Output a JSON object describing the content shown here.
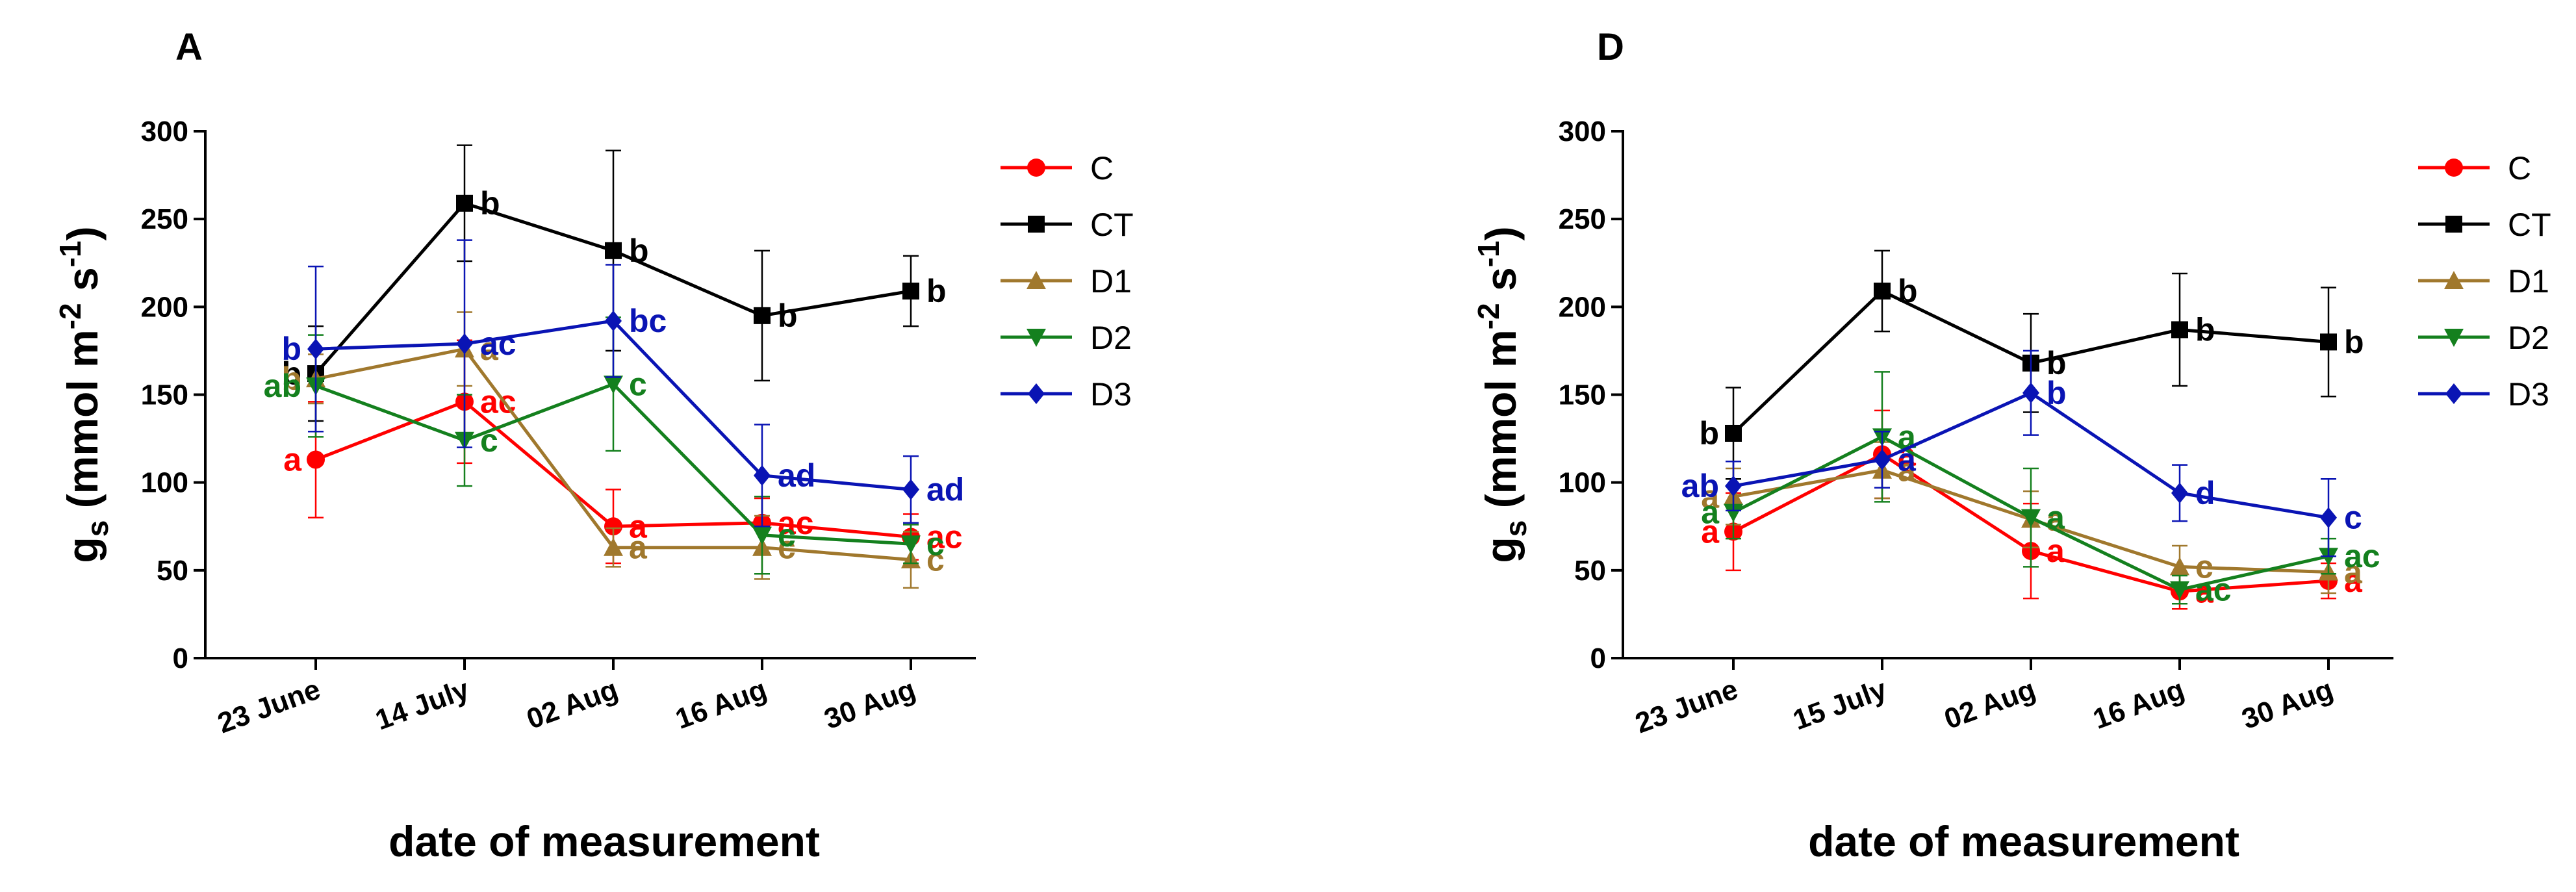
{
  "figure": {
    "xlabel": "date of measurement",
    "ylabel_main": "g",
    "ylabel_sub": "s",
    "ylabel_rest": " (mmol m",
    "ylabel_exp1": "-2",
    "ylabel_mid": " s",
    "ylabel_exp2": "-1",
    "ylabel_end": ")"
  },
  "legend": [
    {
      "name": "C",
      "color": "#ff0000",
      "marker": "circle"
    },
    {
      "name": "CT",
      "color": "#000000",
      "marker": "square"
    },
    {
      "name": "D1",
      "color": "#a0782d",
      "marker": "triangle-up"
    },
    {
      "name": "D2",
      "color": "#14801e",
      "marker": "triangle-down"
    },
    {
      "name": "D3",
      "color": "#0a14b4",
      "marker": "diamond"
    }
  ],
  "chart_data": [
    {
      "panel": "A",
      "type": "line",
      "title": "A",
      "xlabel": "date of measurement",
      "ylabel": "gs (mmol m-2 s-1)",
      "ylim": [
        0,
        300
      ],
      "yticks": [
        0,
        50,
        100,
        150,
        200,
        250,
        300
      ],
      "categories": [
        "23 June",
        "14 July",
        "02 Aug",
        "16 Aug",
        "30 Aug"
      ],
      "series": [
        {
          "name": "C",
          "values": [
            113,
            146,
            75,
            77,
            69
          ],
          "err": [
            33,
            35,
            21,
            14,
            13
          ],
          "letters": [
            "a",
            "ac",
            "a",
            "ac",
            "ac"
          ]
        },
        {
          "name": "CT",
          "values": [
            162,
            259,
            232,
            195,
            209
          ],
          "err": [
            27,
            33,
            57,
            37,
            20
          ],
          "letters": [
            "b",
            "b",
            "b",
            "b",
            "b"
          ]
        },
        {
          "name": "D1",
          "values": [
            159,
            176,
            63,
            63,
            56
          ],
          "err": [
            14,
            21,
            11,
            18,
            16
          ],
          "letters": [
            "b",
            "a",
            "a",
            "c",
            "c"
          ]
        },
        {
          "name": "D2",
          "values": [
            155,
            124,
            156,
            70,
            65
          ],
          "err": [
            29,
            26,
            38,
            22,
            11
          ],
          "letters": [
            "ab",
            "c",
            "c",
            "c",
            "c"
          ]
        },
        {
          "name": "D3",
          "values": [
            176,
            179,
            192,
            104,
            96
          ],
          "err": [
            47,
            59,
            32,
            29,
            19
          ],
          "letters": [
            "b",
            "ac",
            "bc",
            "ad",
            "ad"
          ]
        }
      ]
    },
    {
      "panel": "D",
      "type": "line",
      "title": "D",
      "xlabel": "date of measurement",
      "ylabel": "gs (mmol m-2 s-1)",
      "ylim": [
        0,
        300
      ],
      "yticks": [
        0,
        50,
        100,
        150,
        200,
        250,
        300
      ],
      "categories": [
        "23 June",
        "15 July",
        "02 Aug",
        "16 Aug",
        "30 Aug"
      ],
      "series": [
        {
          "name": "C",
          "values": [
            72,
            116,
            61,
            38,
            44
          ],
          "err": [
            22,
            25,
            27,
            10,
            10
          ],
          "letters": [
            "a",
            "a",
            "a",
            "a",
            "a"
          ]
        },
        {
          "name": "CT",
          "values": [
            128,
            209,
            168,
            187,
            180
          ],
          "err": [
            26,
            23,
            28,
            32,
            31
          ],
          "letters": [
            "b",
            "b",
            "b",
            "b",
            "b"
          ]
        },
        {
          "name": "D1",
          "values": [
            92,
            107,
            79,
            52,
            49
          ],
          "err": [
            16,
            16,
            16,
            12,
            12
          ],
          "letters": [
            "a",
            "a",
            "a",
            "c",
            "a"
          ]
        },
        {
          "name": "D2",
          "values": [
            83,
            126,
            80,
            39,
            58
          ],
          "err": [
            15,
            37,
            28,
            8,
            10
          ],
          "letters": [
            "a",
            "a",
            "a",
            "ac",
            "ac"
          ]
        },
        {
          "name": "D3",
          "values": [
            98,
            113,
            151,
            94,
            80
          ],
          "err": [
            14,
            16,
            24,
            16,
            22
          ],
          "letters": [
            "ab",
            "a",
            "b",
            "d",
            "c"
          ]
        }
      ]
    }
  ]
}
